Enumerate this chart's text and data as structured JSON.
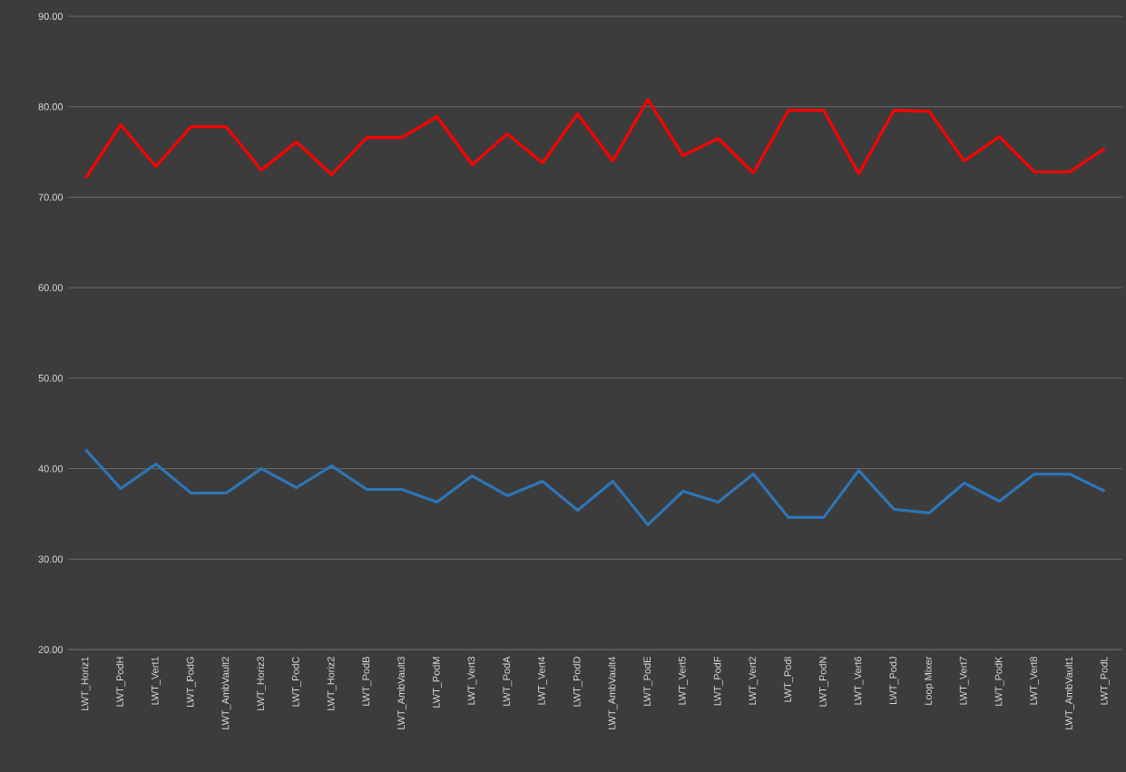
{
  "chart_data": {
    "type": "line",
    "categories": [
      "LWT_Horiz1",
      "LWT_PodH",
      "LWT_Vert1",
      "LWT_PodG",
      "LWT_AmbVault2",
      "LWT_Horiz3",
      "LWT_PodC",
      "LWT_Horiz2",
      "LWT_PodB",
      "LWT_AmbVault3",
      "LWT_PodM",
      "LWT_Vert3",
      "LWT_PodA",
      "LWT_Vert4",
      "LWT_PodD",
      "LWT_AmbVault4",
      "LWT_PodE",
      "LWT_Vert5",
      "LWT_PodF",
      "LWT_Vert2",
      "LWT_PodI",
      "LWT_PodN",
      "LWT_Vert6",
      "LWT_PodJ",
      "Loop Mixer",
      "LWT_Vert7",
      "LWT_PodK",
      "LWT_Vert8",
      "LWT_AmbVault1",
      "LWT_PodL"
    ],
    "series": [
      {
        "color": "#ff0000",
        "values": [
          72.1,
          78.0,
          73.4,
          77.8,
          77.8,
          73.0,
          76.1,
          72.5,
          76.6,
          76.6,
          78.9,
          73.6,
          77.0,
          73.8,
          79.2,
          74.0,
          80.8,
          74.6,
          76.5,
          72.7,
          79.6,
          79.6,
          72.6,
          79.6,
          79.5,
          74.0,
          76.7,
          72.8,
          72.8,
          75.4
        ]
      },
      {
        "color": "#2e75b6",
        "values": [
          42.1,
          37.8,
          40.5,
          37.3,
          37.3,
          40.0,
          37.9,
          40.3,
          37.7,
          37.7,
          36.3,
          39.2,
          37.0,
          38.6,
          35.4,
          38.6,
          33.8,
          37.5,
          36.3,
          39.4,
          34.6,
          34.6,
          39.8,
          35.5,
          35.1,
          38.4,
          36.4,
          39.4,
          39.4,
          37.5
        ]
      }
    ],
    "ylim": [
      20,
      90
    ],
    "yticks": [
      {
        "value": 20,
        "label": "20.00"
      },
      {
        "value": 30,
        "label": "30.00"
      },
      {
        "value": 40,
        "label": "40.00"
      },
      {
        "value": 50,
        "label": "50.00"
      },
      {
        "value": 60,
        "label": "60.00"
      },
      {
        "value": 70,
        "label": "70.00"
      },
      {
        "value": 80,
        "label": "80.00"
      },
      {
        "value": 90,
        "label": "90.00"
      }
    ],
    "grid": "y",
    "marker": "none",
    "line_style": "solid"
  }
}
